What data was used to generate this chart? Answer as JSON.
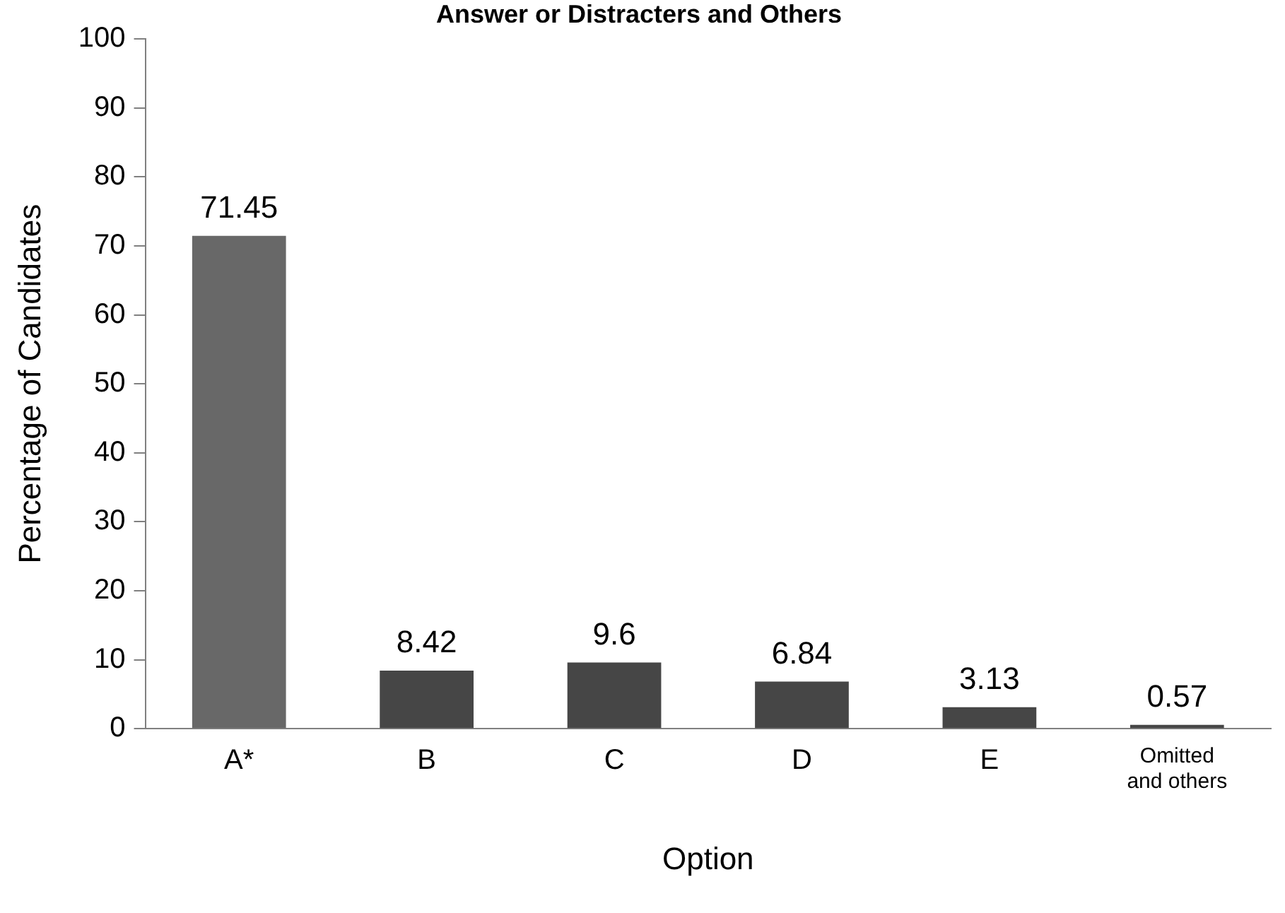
{
  "chart_data": {
    "type": "bar",
    "title": "Answer or Distracters and Others",
    "xlabel": "Option",
    "ylabel": "Percentage of Candidates",
    "categories": [
      "A*",
      "B",
      "C",
      "D",
      "E",
      "Omitted\nand others"
    ],
    "values": [
      71.45,
      8.42,
      9.6,
      6.84,
      3.13,
      0.57
    ],
    "colors": [
      "#686868",
      "#464646",
      "#464646",
      "#464646",
      "#464646",
      "#464646"
    ],
    "ylim": [
      0,
      100
    ],
    "yticks": [
      0,
      10,
      20,
      30,
      40,
      50,
      60,
      70,
      80,
      90,
      100
    ],
    "grid": false,
    "legend": false,
    "data_labels": true
  }
}
